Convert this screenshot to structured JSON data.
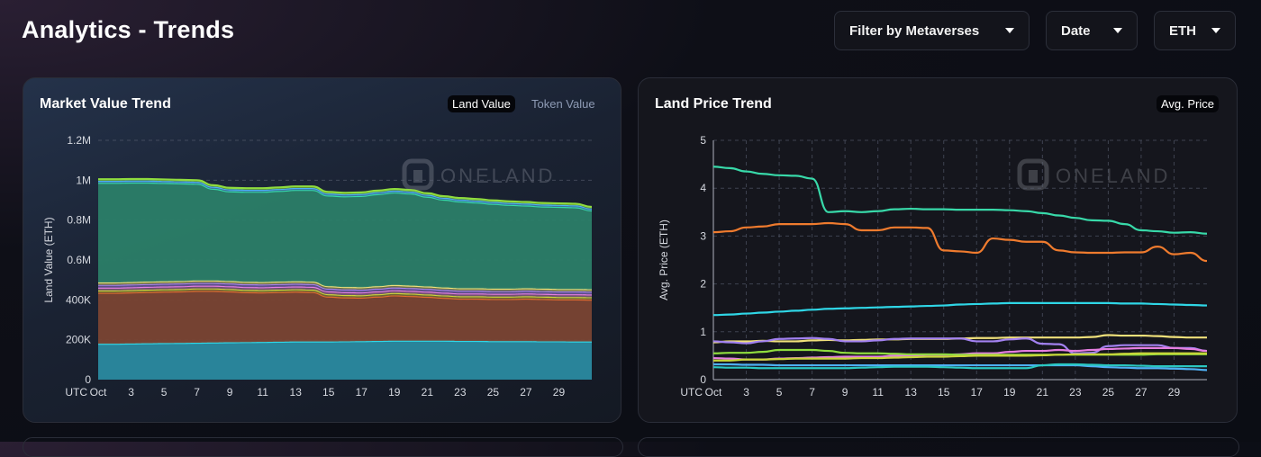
{
  "page": {
    "title": "Analytics - Trends"
  },
  "filters": [
    {
      "label": "Filter by Metaverses"
    },
    {
      "label": "Date"
    },
    {
      "label": "ETH"
    }
  ],
  "market_card": {
    "title": "Market Value Trend",
    "toggles": [
      {
        "label": "Land Value",
        "active": true
      },
      {
        "label": "Token Value",
        "active": false
      }
    ],
    "watermark": "ONELAND"
  },
  "price_card": {
    "title": "Land Price Trend",
    "toggles": [
      {
        "label": "Avg. Price",
        "active": true
      }
    ],
    "watermark": "ONELAND"
  },
  "chart_data": [
    {
      "type": "area",
      "stacked": true,
      "ylabel": "Land Value (ETH)",
      "y_ticks": [
        "0",
        "200K",
        "400K",
        "0.6M",
        "0.8M",
        "1M",
        "1.2M"
      ],
      "ylim": [
        0,
        1200000
      ],
      "x_ticks": [
        "Oct",
        "3",
        "5",
        "7",
        "9",
        "11",
        "13",
        "15",
        "17",
        "19",
        "21",
        "23",
        "25",
        "27",
        "29"
      ],
      "x_prefix": "UTC",
      "grid": true,
      "x": [
        1,
        2,
        3,
        4,
        5,
        6,
        7,
        8,
        9,
        10,
        11,
        12,
        13,
        14,
        15,
        16,
        17,
        18,
        19,
        20,
        21,
        22,
        23,
        24,
        25,
        26,
        27,
        28,
        29,
        30,
        31
      ],
      "series": [
        {
          "color": "#2a8aa0",
          "line": "#2fd6e6",
          "values": [
            180000,
            180000,
            181000,
            182000,
            183000,
            184000,
            185000,
            186000,
            187000,
            188000,
            189000,
            190000,
            191000,
            191000,
            191000,
            192000,
            193000,
            194000,
            195000,
            195000,
            195000,
            195000,
            194000,
            194000,
            193000,
            193000,
            193000,
            192000,
            192000,
            191000,
            191000
          ]
        },
        {
          "color": "#7a4433",
          "line": "#e06a30",
          "values": [
            255000,
            255000,
            256000,
            257000,
            258000,
            258000,
            260000,
            259000,
            255000,
            250000,
            248000,
            249000,
            250000,
            248000,
            225000,
            220000,
            218000,
            222000,
            227000,
            224000,
            220000,
            215000,
            212000,
            212000,
            211000,
            211000,
            213000,
            212000,
            210000,
            211000,
            210000
          ]
        },
        {
          "color": "#6a6232",
          "line": "#c9d63a",
          "values": [
            12000,
            12000,
            12000,
            12000,
            12000,
            12000,
            12000,
            12000,
            12000,
            12000,
            12000,
            12000,
            12000,
            12000,
            12000,
            12000,
            12000,
            12000,
            12000,
            12000,
            12000,
            12000,
            12000,
            12000,
            12000,
            12000,
            12000,
            12000,
            12000,
            12000,
            12000
          ]
        },
        {
          "color": "#735071",
          "line": "#e57ee0",
          "values": [
            14000,
            14000,
            14000,
            14000,
            14000,
            14000,
            14000,
            14000,
            14000,
            14000,
            14000,
            14000,
            14000,
            14000,
            14000,
            14000,
            14000,
            14000,
            14000,
            14000,
            14000,
            14000,
            14000,
            14000,
            14000,
            14000,
            14000,
            14000,
            14000,
            14000,
            14000
          ]
        },
        {
          "color": "#5c4f88",
          "line": "#a281f0",
          "values": [
            14000,
            14000,
            14000,
            14000,
            14000,
            14000,
            14000,
            14000,
            14000,
            14000,
            14000,
            14000,
            14000,
            14000,
            14000,
            14000,
            14000,
            14000,
            14000,
            14000,
            14000,
            14000,
            14000,
            14000,
            14000,
            14000,
            14000,
            14000,
            14000,
            14000,
            14000
          ]
        },
        {
          "color": "#6c6e44",
          "line": "#efe07a",
          "values": [
            12000,
            12000,
            12000,
            12000,
            12000,
            12000,
            12000,
            12000,
            12000,
            12000,
            12000,
            12000,
            12000,
            12000,
            12000,
            12000,
            12000,
            12000,
            12000,
            12000,
            12000,
            12000,
            12000,
            12000,
            12000,
            12000,
            12000,
            12000,
            12000,
            12000,
            12000
          ]
        },
        {
          "color": "#2b7e68",
          "line": "#35d8a8",
          "values": [
            500000,
            500000,
            499000,
            497000,
            493000,
            490000,
            485000,
            460000,
            450000,
            452000,
            453000,
            455000,
            458000,
            460000,
            455000,
            455000,
            458000,
            462000,
            464000,
            462000,
            450000,
            440000,
            435000,
            430000,
            425000,
            420000,
            415000,
            412000,
            412000,
            410000,
            395000
          ]
        },
        {
          "color": "#3d6f9c",
          "line": "#4eb0f5",
          "values": [
            10000,
            10000,
            10000,
            10000,
            10000,
            10000,
            10000,
            10000,
            10000,
            10000,
            10000,
            10000,
            10000,
            10000,
            10000,
            10000,
            10000,
            10000,
            10000,
            10000,
            10000,
            10000,
            10000,
            10000,
            10000,
            10000,
            10000,
            10000,
            10000,
            10000,
            10000
          ]
        },
        {
          "color": "#4f7a2e",
          "line": "#8fdc3e",
          "values": [
            8000,
            8000,
            8000,
            8000,
            8000,
            8000,
            8000,
            8000,
            8000,
            8000,
            8000,
            8000,
            8000,
            8000,
            8000,
            8000,
            8000,
            8000,
            8000,
            8000,
            8000,
            8000,
            8000,
            8000,
            8000,
            8000,
            8000,
            8000,
            8000,
            8000,
            8000
          ]
        }
      ]
    },
    {
      "type": "line",
      "ylabel": "Avg. Price (ETH)",
      "y_ticks": [
        "0",
        "1",
        "2",
        "3",
        "4",
        "5"
      ],
      "ylim": [
        0,
        5
      ],
      "x_ticks": [
        "Oct",
        "3",
        "5",
        "7",
        "9",
        "11",
        "13",
        "15",
        "17",
        "19",
        "21",
        "23",
        "25",
        "27",
        "29"
      ],
      "x_prefix": "UTC",
      "grid": true,
      "x": [
        1,
        2,
        3,
        4,
        5,
        6,
        7,
        8,
        9,
        10,
        11,
        12,
        13,
        14,
        15,
        16,
        17,
        18,
        19,
        20,
        21,
        22,
        23,
        24,
        25,
        26,
        27,
        28,
        29,
        30,
        31
      ],
      "series": [
        {
          "color": "#38d9a9",
          "values": [
            4.45,
            4.42,
            4.35,
            4.3,
            4.27,
            4.26,
            4.2,
            3.5,
            3.52,
            3.5,
            3.52,
            3.56,
            3.57,
            3.56,
            3.56,
            3.55,
            3.55,
            3.55,
            3.54,
            3.52,
            3.48,
            3.43,
            3.38,
            3.33,
            3.32,
            3.25,
            3.12,
            3.1,
            3.07,
            3.08,
            3.05
          ]
        },
        {
          "color": "#ef7b2e",
          "values": [
            3.08,
            3.1,
            3.18,
            3.2,
            3.25,
            3.25,
            3.25,
            3.27,
            3.25,
            3.12,
            3.12,
            3.18,
            3.18,
            3.17,
            2.7,
            2.68,
            2.65,
            2.95,
            2.92,
            2.88,
            2.88,
            2.7,
            2.66,
            2.65,
            2.65,
            2.66,
            2.66,
            2.78,
            2.62,
            2.65,
            2.48
          ]
        },
        {
          "color": "#2fd6e6",
          "values": [
            1.35,
            1.36,
            1.38,
            1.4,
            1.42,
            1.44,
            1.46,
            1.48,
            1.49,
            1.5,
            1.51,
            1.52,
            1.53,
            1.54,
            1.55,
            1.57,
            1.58,
            1.59,
            1.6,
            1.6,
            1.6,
            1.6,
            1.6,
            1.6,
            1.6,
            1.59,
            1.59,
            1.58,
            1.57,
            1.56,
            1.55
          ]
        },
        {
          "color": "#efe07a",
          "values": [
            0.78,
            0.8,
            0.8,
            0.81,
            0.8,
            0.8,
            0.82,
            0.83,
            0.82,
            0.83,
            0.84,
            0.84,
            0.85,
            0.85,
            0.85,
            0.86,
            0.87,
            0.87,
            0.88,
            0.88,
            0.88,
            0.88,
            0.88,
            0.89,
            0.93,
            0.92,
            0.92,
            0.91,
            0.89,
            0.88,
            0.88
          ]
        },
        {
          "color": "#a281f0",
          "values": [
            0.8,
            0.78,
            0.76,
            0.8,
            0.85,
            0.86,
            0.87,
            0.85,
            0.8,
            0.8,
            0.82,
            0.85,
            0.86,
            0.86,
            0.86,
            0.86,
            0.8,
            0.8,
            0.84,
            0.86,
            0.75,
            0.74,
            0.55,
            0.56,
            0.7,
            0.72,
            0.72,
            0.72,
            0.66,
            0.66,
            0.6
          ]
        },
        {
          "color": "#e57ee0",
          "values": [
            0.45,
            0.44,
            0.42,
            0.42,
            0.44,
            0.45,
            0.46,
            0.47,
            0.48,
            0.48,
            0.48,
            0.5,
            0.5,
            0.52,
            0.52,
            0.53,
            0.55,
            0.55,
            0.58,
            0.6,
            0.6,
            0.62,
            0.6,
            0.62,
            0.64,
            0.65,
            0.66,
            0.66,
            0.66,
            0.64,
            0.6
          ]
        },
        {
          "color": "#8fdc3e",
          "values": [
            0.55,
            0.56,
            0.56,
            0.58,
            0.62,
            0.62,
            0.62,
            0.6,
            0.56,
            0.55,
            0.55,
            0.54,
            0.53,
            0.53,
            0.53,
            0.52,
            0.52,
            0.52,
            0.52,
            0.52,
            0.52,
            0.52,
            0.52,
            0.52,
            0.52,
            0.52,
            0.52,
            0.53,
            0.53,
            0.53,
            0.53
          ]
        },
        {
          "color": "#c9d63a",
          "values": [
            0.4,
            0.4,
            0.42,
            0.42,
            0.43,
            0.44,
            0.44,
            0.44,
            0.44,
            0.45,
            0.45,
            0.46,
            0.47,
            0.48,
            0.48,
            0.49,
            0.5,
            0.5,
            0.5,
            0.5,
            0.51,
            0.52,
            0.53,
            0.53,
            0.53,
            0.54,
            0.55,
            0.55,
            0.55,
            0.55,
            0.55
          ]
        },
        {
          "color": "#4eb0f5",
          "values": [
            0.32,
            0.32,
            0.31,
            0.31,
            0.3,
            0.3,
            0.3,
            0.3,
            0.3,
            0.3,
            0.3,
            0.3,
            0.3,
            0.3,
            0.3,
            0.3,
            0.3,
            0.3,
            0.3,
            0.3,
            0.3,
            0.3,
            0.3,
            0.28,
            0.26,
            0.25,
            0.24,
            0.24,
            0.23,
            0.22,
            0.2
          ]
        },
        {
          "color": "#2ac7c0",
          "values": [
            0.26,
            0.25,
            0.25,
            0.24,
            0.24,
            0.24,
            0.24,
            0.24,
            0.24,
            0.25,
            0.26,
            0.27,
            0.27,
            0.27,
            0.26,
            0.25,
            0.24,
            0.24,
            0.24,
            0.24,
            0.3,
            0.32,
            0.32,
            0.31,
            0.3,
            0.3,
            0.29,
            0.28,
            0.28,
            0.28,
            0.28
          ]
        }
      ]
    }
  ]
}
